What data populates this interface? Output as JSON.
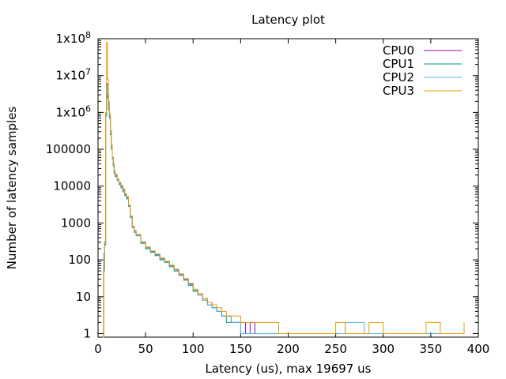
{
  "chart_data": {
    "type": "line",
    "title": "Latency plot",
    "xlabel": "Latency (us), max 19697 us",
    "ylabel": "Number of latency samples",
    "xlim": [
      0,
      400
    ],
    "ylim": [
      0.8,
      100000000
    ],
    "yscale": "log",
    "xticks": [
      0,
      50,
      100,
      150,
      200,
      250,
      300,
      350,
      400
    ],
    "yticks": [
      {
        "value": 1,
        "label": "1"
      },
      {
        "value": 10,
        "label": "10"
      },
      {
        "value": 100,
        "label": "100"
      },
      {
        "value": 1000,
        "label": "1000"
      },
      {
        "value": 10000,
        "label": "10000"
      },
      {
        "value": 100000,
        "label": "100000"
      },
      {
        "value": 1000000,
        "label": "1x10",
        "sup": "6"
      },
      {
        "value": 10000000,
        "label": "1x10",
        "sup": "7"
      },
      {
        "value": 100000000,
        "label": "1x10",
        "sup": "8"
      }
    ],
    "grid": false,
    "legend_position": "top-right",
    "series": [
      {
        "name": "CPU0",
        "color": "#9400d3",
        "points": [
          [
            5,
            0.8
          ],
          [
            6,
            80
          ],
          [
            7,
            300
          ],
          [
            8,
            900000
          ],
          [
            9,
            6000000
          ],
          [
            10,
            3000000
          ],
          [
            11,
            1500000
          ],
          [
            12,
            800000
          ],
          [
            13,
            300000
          ],
          [
            14,
            120000
          ],
          [
            15,
            60000
          ],
          [
            16,
            40000
          ],
          [
            17,
            25000
          ],
          [
            18,
            20000
          ],
          [
            20,
            15000
          ],
          [
            22,
            12000
          ],
          [
            24,
            10000
          ],
          [
            26,
            8000
          ],
          [
            28,
            6000
          ],
          [
            30,
            5000
          ],
          [
            32,
            3000
          ],
          [
            34,
            1500
          ],
          [
            36,
            800
          ],
          [
            38,
            600
          ],
          [
            40,
            480
          ],
          [
            45,
            300
          ],
          [
            50,
            220
          ],
          [
            55,
            170
          ],
          [
            60,
            140
          ],
          [
            65,
            110
          ],
          [
            70,
            90
          ],
          [
            75,
            70
          ],
          [
            80,
            55
          ],
          [
            85,
            40
          ],
          [
            90,
            30
          ],
          [
            95,
            22
          ],
          [
            100,
            15
          ],
          [
            105,
            12
          ],
          [
            110,
            9
          ],
          [
            115,
            7
          ],
          [
            120,
            5
          ],
          [
            125,
            4
          ],
          [
            130,
            3
          ],
          [
            135,
            3
          ],
          [
            140,
            2
          ],
          [
            145,
            2
          ],
          [
            150,
            2
          ],
          [
            155,
            1
          ],
          [
            160,
            2
          ],
          [
            165,
            1
          ],
          [
            170,
            1
          ],
          [
            175,
            1
          ],
          [
            180,
            1
          ],
          [
            190,
            1
          ],
          [
            200,
            1
          ],
          [
            210,
            1
          ],
          [
            220,
            1
          ],
          [
            240,
            1
          ],
          [
            260,
            1
          ],
          [
            280,
            1
          ],
          [
            300,
            1
          ],
          [
            320,
            1
          ],
          [
            340,
            1
          ],
          [
            360,
            1
          ],
          [
            380,
            1
          ]
        ]
      },
      {
        "name": "CPU1",
        "color": "#009e73",
        "points": [
          [
            5,
            0.8
          ],
          [
            6,
            60
          ],
          [
            7,
            250
          ],
          [
            8,
            800000
          ],
          [
            9,
            5000000
          ],
          [
            10,
            2500000
          ],
          [
            11,
            1200000
          ],
          [
            12,
            700000
          ],
          [
            13,
            250000
          ],
          [
            14,
            100000
          ],
          [
            15,
            55000
          ],
          [
            16,
            35000
          ],
          [
            17,
            22000
          ],
          [
            18,
            18000
          ],
          [
            20,
            14000
          ],
          [
            22,
            11000
          ],
          [
            24,
            9000
          ],
          [
            26,
            7000
          ],
          [
            28,
            5500
          ],
          [
            30,
            4500
          ],
          [
            32,
            2800
          ],
          [
            34,
            1400
          ],
          [
            36,
            750
          ],
          [
            38,
            560
          ],
          [
            40,
            450
          ],
          [
            45,
            280
          ],
          [
            50,
            200
          ],
          [
            55,
            160
          ],
          [
            60,
            130
          ],
          [
            65,
            100
          ],
          [
            70,
            85
          ],
          [
            75,
            65
          ],
          [
            80,
            50
          ],
          [
            85,
            38
          ],
          [
            90,
            28
          ],
          [
            95,
            20
          ],
          [
            100,
            14
          ],
          [
            105,
            11
          ],
          [
            110,
            8
          ],
          [
            115,
            6
          ],
          [
            120,
            5
          ],
          [
            125,
            4
          ],
          [
            130,
            3
          ],
          [
            135,
            2
          ],
          [
            140,
            2
          ],
          [
            145,
            2
          ],
          [
            150,
            1
          ],
          [
            155,
            1
          ],
          [
            160,
            1
          ],
          [
            170,
            1
          ],
          [
            180,
            1
          ],
          [
            190,
            1
          ],
          [
            200,
            1
          ],
          [
            220,
            1
          ],
          [
            240,
            1
          ],
          [
            260,
            1
          ],
          [
            300,
            1
          ],
          [
            320,
            1
          ]
        ]
      },
      {
        "name": "CPU2",
        "color": "#56b4e9",
        "points": [
          [
            5,
            150
          ],
          [
            6,
            50
          ],
          [
            7,
            280
          ],
          [
            8,
            850000
          ],
          [
            9,
            5500000
          ],
          [
            10,
            2800000
          ],
          [
            11,
            1300000
          ],
          [
            12,
            750000
          ],
          [
            13,
            280000
          ],
          [
            14,
            110000
          ],
          [
            15,
            58000
          ],
          [
            16,
            38000
          ],
          [
            17,
            24000
          ],
          [
            18,
            19000
          ],
          [
            20,
            14500
          ],
          [
            22,
            11500
          ],
          [
            24,
            9500
          ],
          [
            26,
            7500
          ],
          [
            28,
            5800
          ],
          [
            30,
            4700
          ],
          [
            32,
            2900
          ],
          [
            34,
            1450
          ],
          [
            36,
            780
          ],
          [
            38,
            580
          ],
          [
            40,
            460
          ],
          [
            45,
            290
          ],
          [
            50,
            210
          ],
          [
            55,
            165
          ],
          [
            60,
            135
          ],
          [
            65,
            105
          ],
          [
            70,
            88
          ],
          [
            75,
            68
          ],
          [
            80,
            52
          ],
          [
            85,
            39
          ],
          [
            90,
            29
          ],
          [
            95,
            21
          ],
          [
            100,
            15
          ],
          [
            105,
            11
          ],
          [
            110,
            8
          ],
          [
            115,
            6
          ],
          [
            120,
            5
          ],
          [
            125,
            4
          ],
          [
            130,
            3
          ],
          [
            135,
            3
          ],
          [
            140,
            2
          ],
          [
            145,
            2
          ],
          [
            150,
            1
          ],
          [
            160,
            1
          ],
          [
            170,
            1
          ],
          [
            180,
            1
          ],
          [
            200,
            1
          ],
          [
            230,
            1
          ],
          [
            250,
            1
          ],
          [
            260,
            2
          ],
          [
            280,
            1
          ],
          [
            310,
            1
          ],
          [
            330,
            1
          ],
          [
            350,
            1
          ],
          [
            370,
            1
          ],
          [
            380,
            1
          ]
        ]
      },
      {
        "name": "CPU3",
        "color": "#e69f00",
        "points": [
          [
            5,
            0.8
          ],
          [
            6,
            70
          ],
          [
            7,
            320
          ],
          [
            8,
            1000000
          ],
          [
            9,
            80000000
          ],
          [
            10,
            8000000
          ],
          [
            11,
            2000000
          ],
          [
            12,
            900000
          ],
          [
            13,
            320000
          ],
          [
            14,
            130000
          ],
          [
            15,
            62000
          ],
          [
            16,
            42000
          ],
          [
            17,
            26000
          ],
          [
            18,
            21000
          ],
          [
            20,
            15500
          ],
          [
            22,
            12500
          ],
          [
            24,
            10500
          ],
          [
            26,
            8500
          ],
          [
            28,
            6200
          ],
          [
            30,
            5200
          ],
          [
            32,
            3100
          ],
          [
            34,
            1550
          ],
          [
            36,
            820
          ],
          [
            38,
            620
          ],
          [
            40,
            490
          ],
          [
            45,
            310
          ],
          [
            50,
            225
          ],
          [
            55,
            175
          ],
          [
            60,
            145
          ],
          [
            65,
            112
          ],
          [
            70,
            92
          ],
          [
            75,
            72
          ],
          [
            80,
            56
          ],
          [
            85,
            42
          ],
          [
            90,
            31
          ],
          [
            95,
            23
          ],
          [
            100,
            16
          ],
          [
            105,
            12
          ],
          [
            110,
            9
          ],
          [
            115,
            7
          ],
          [
            120,
            6
          ],
          [
            125,
            5
          ],
          [
            130,
            4
          ],
          [
            135,
            3
          ],
          [
            140,
            3
          ],
          [
            145,
            3
          ],
          [
            150,
            2
          ],
          [
            155,
            2
          ],
          [
            160,
            2
          ],
          [
            170,
            2
          ],
          [
            180,
            2
          ],
          [
            190,
            1
          ],
          [
            200,
            1
          ],
          [
            210,
            1
          ],
          [
            220,
            1
          ],
          [
            240,
            1
          ],
          [
            250,
            2
          ],
          [
            260,
            1
          ],
          [
            270,
            1
          ],
          [
            285,
            2
          ],
          [
            300,
            1
          ],
          [
            320,
            1
          ],
          [
            345,
            2
          ],
          [
            360,
            1
          ],
          [
            385,
            2
          ]
        ]
      }
    ]
  }
}
